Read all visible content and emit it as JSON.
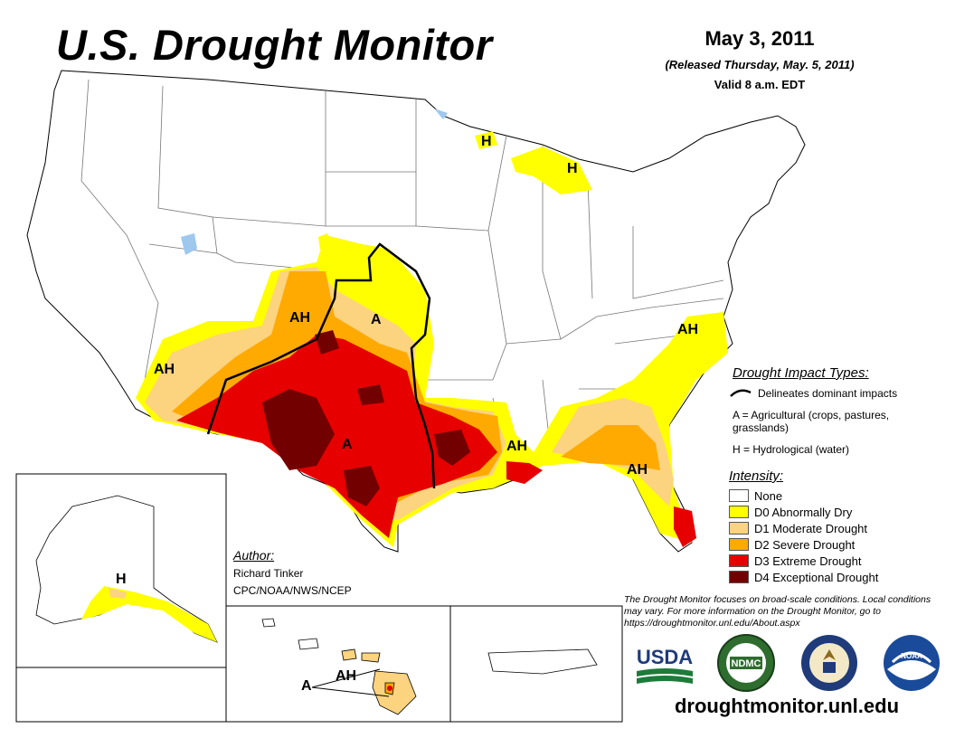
{
  "header": {
    "title": "U.S. Drought Monitor",
    "date": "May 3, 2011",
    "released": "(Released Thursday, May. 5, 2011)",
    "valid": "Valid 8 a.m. EDT"
  },
  "impact_types": {
    "heading": "Drought Impact Types:",
    "delineates": "Delineates dominant impacts",
    "a_def": "A = Agricultural (crops, pastures, grasslands)",
    "h_def": "H = Hydrological (water)"
  },
  "intensity": {
    "heading": "Intensity:",
    "levels": [
      {
        "label": "None",
        "color": "#ffffff"
      },
      {
        "label": "D0 Abnormally Dry",
        "color": "#ffff00"
      },
      {
        "label": "D1 Moderate Drought",
        "color": "#fcd37f"
      },
      {
        "label": "D2 Severe Drought",
        "color": "#ffaa00"
      },
      {
        "label": "D3 Extreme Drought",
        "color": "#e60000"
      },
      {
        "label": "D4 Exceptional Drought",
        "color": "#730000"
      }
    ]
  },
  "author": {
    "heading": "Author:",
    "name": "Richard Tinker",
    "org": "CPC/NOAA/NWS/NCEP"
  },
  "note": "The Drought Monitor focuses on broad-scale conditions. Local conditions may vary. For more information on the Drought Monitor, go to https://droughtmonitor.unl.edu/About.aspx",
  "logos": [
    "USDA",
    "NDMC",
    "Department of Commerce seal",
    "NOAA"
  ],
  "logo_texts": {
    "usda": "USDA",
    "ndmc": "NDMC",
    "noaa": "NOAA"
  },
  "url": "droughtmonitor.unl.edu",
  "map_labels": {
    "ah_colorado": "AH",
    "a_kansas": "A",
    "ah_arizona": "AH",
    "a_texas": "A",
    "ah_mississippi": "AH",
    "ah_georgia": "AH",
    "ah_virginia": "AH",
    "h_upper_michigan": "H",
    "h_lower_michigan": "H",
    "h_alaska": "H",
    "ah_hawaii": "AH",
    "a_hawaii": "A"
  }
}
